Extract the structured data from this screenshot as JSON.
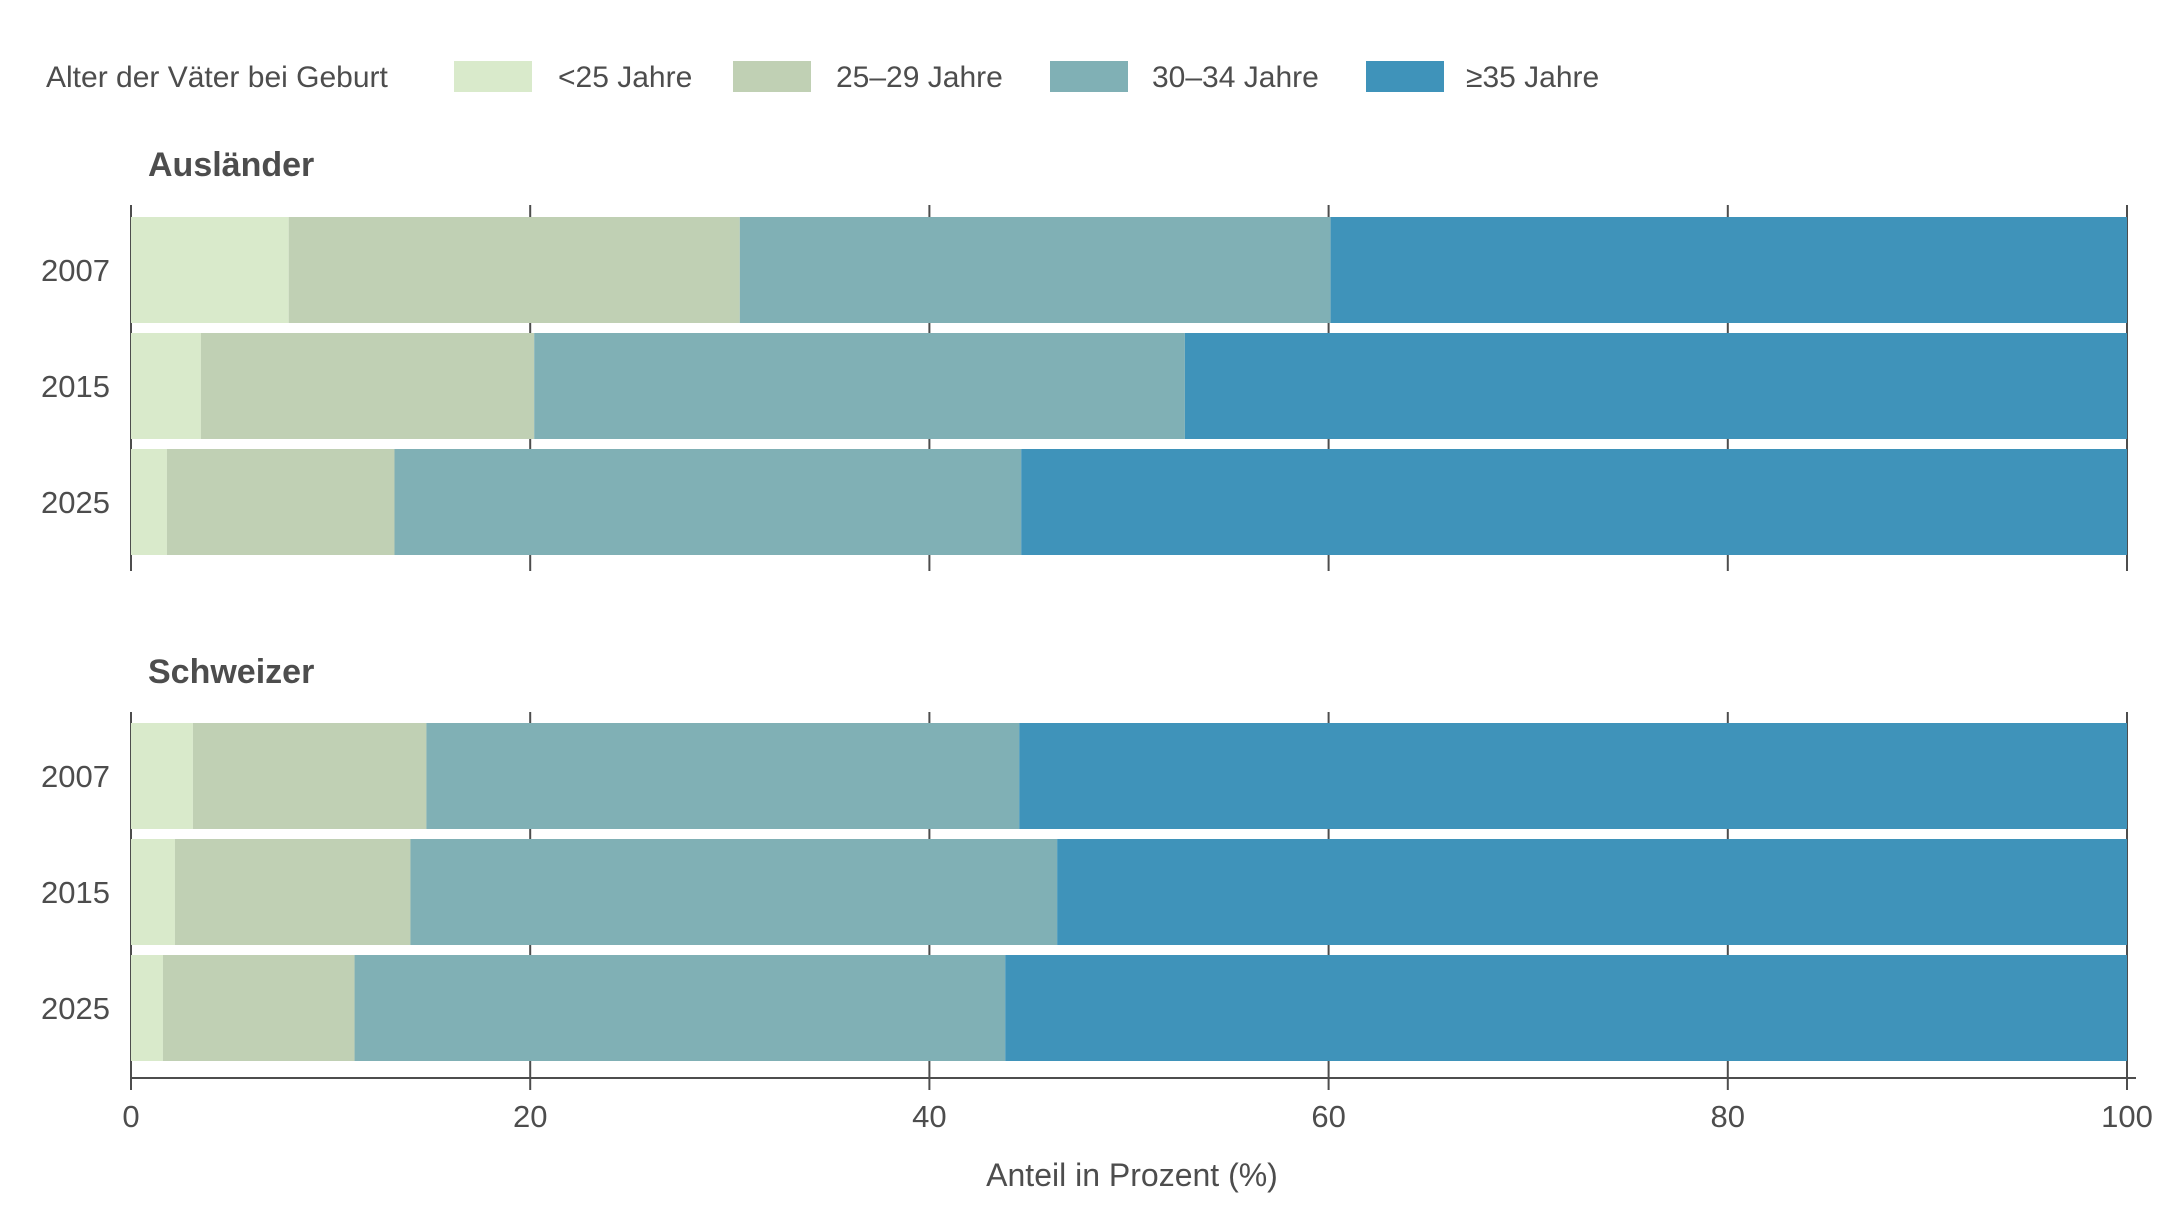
{
  "chart_data": {
    "type": "bar",
    "orientation": "horizontal",
    "stacked": true,
    "legend": {
      "title": "Alter der Väter bei Geburt",
      "placement": "top-left",
      "entries": [
        "<25 Jahre",
        "25–29 Jahre",
        "30–34 Jahre",
        "≥35 Jahre"
      ]
    },
    "colors": {
      "<25 Jahre": "#d9eacb",
      "25–29 Jahre": "#c0d0b4",
      "30–34 Jahre": "#80b0b5",
      "≥35 Jahre": "#3f93ba"
    },
    "xlabel": "Anteil in Prozent (%)",
    "xlim": [
      0,
      100
    ],
    "xticks": [
      0,
      20,
      40,
      60,
      80,
      100
    ],
    "grid": "vertical",
    "facets": [
      {
        "title": "Ausländer",
        "categories": [
          "2007",
          "2015",
          "2025"
        ],
        "series": [
          {
            "name": "<25 Jahre",
            "values": [
              7.9,
              3.5,
              1.8
            ]
          },
          {
            "name": "25–29 Jahre",
            "values": [
              22.6,
              16.7,
              11.4
            ]
          },
          {
            "name": "30–34 Jahre",
            "values": [
              29.6,
              32.6,
              31.4
            ]
          },
          {
            "name": "≥35 Jahre",
            "values": [
              39.9,
              47.2,
              55.4
            ]
          }
        ]
      },
      {
        "title": "Schweizer",
        "categories": [
          "2007",
          "2015",
          "2025"
        ],
        "series": [
          {
            "name": "<25 Jahre",
            "values": [
              3.1,
              2.2,
              1.6
            ]
          },
          {
            "name": "25–29 Jahre",
            "values": [
              11.7,
              11.8,
              9.6
            ]
          },
          {
            "name": "30–34 Jahre",
            "values": [
              29.7,
              32.4,
              32.6
            ]
          },
          {
            "name": "≥35 Jahre",
            "values": [
              55.5,
              53.6,
              56.2
            ]
          }
        ]
      }
    ]
  }
}
